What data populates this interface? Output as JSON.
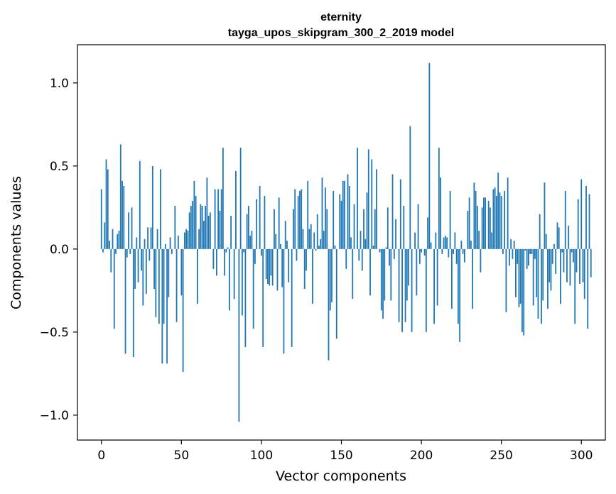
{
  "chart_data": {
    "type": "bar",
    "title": "eternity",
    "subtitle": "tayga_upos_skipgram_300_2_2019 model",
    "xlabel": "Vector components",
    "ylabel": "Components values",
    "xlim": [
      -15,
      315
    ],
    "ylim": [
      -1.15,
      1.23
    ],
    "x_ticks": [
      0,
      50,
      100,
      150,
      200,
      250,
      300
    ],
    "x_tick_labels": [
      "0",
      "50",
      "100",
      "150",
      "200",
      "250",
      "300"
    ],
    "y_ticks": [
      1.0,
      0.5,
      0.0,
      -0.5,
      -1.0
    ],
    "y_tick_labels": [
      "1.0",
      "0.5",
      "0.0",
      "−0.5",
      "−1.0"
    ],
    "bar_color": "#1f77b4",
    "grid": false,
    "legend": "none",
    "series": [
      {
        "values": [
          0.36,
          -0.02,
          0.16,
          0.54,
          0.48,
          0.05,
          -0.14,
          0.12,
          -0.48,
          -0.03,
          0.09,
          0.11,
          0.63,
          0.41,
          0.38,
          -0.63,
          -0.05,
          0.22,
          -0.03,
          0.25,
          -0.65,
          -0.24,
          0.07,
          -0.2,
          0.53,
          -0.13,
          -0.34,
          0.06,
          -0.27,
          0.13,
          -0.07,
          0.13,
          0.5,
          -0.24,
          -0.41,
          0.12,
          -0.45,
          0.48,
          -0.69,
          -0.45,
          0.03,
          -0.69,
          -0.29,
          0.07,
          -0.03,
          0.0,
          0.26,
          -0.44,
          0.08,
          0.0,
          -0.28,
          -0.74,
          0.1,
          0.12,
          0.11,
          0.22,
          0.26,
          0.29,
          0.41,
          0.32,
          -0.33,
          0.12,
          0.27,
          0.26,
          0.17,
          0.26,
          0.43,
          0.2,
          0.22,
          0.0,
          -0.12,
          0.36,
          -0.16,
          0.36,
          0.23,
          0.36,
          0.61,
          -0.16,
          -0.02,
          0.01,
          -0.37,
          0.2,
          0.0,
          -0.3,
          0.47,
          0.0,
          -1.04,
          0.61,
          -0.4,
          -0.02,
          -0.59,
          0.21,
          0.26,
          0.08,
          0.11,
          -0.48,
          -0.09,
          0.3,
          0.0,
          0.38,
          -0.04,
          -0.59,
          0.32,
          -0.18,
          -0.21,
          -0.22,
          -0.16,
          -0.22,
          0.24,
          0.09,
          -0.25,
          0.31,
          0.03,
          -0.23,
          -0.63,
          0.17,
          0.05,
          -0.2,
          0.0,
          -0.59,
          0.24,
          0.36,
          -0.07,
          0.32,
          0.35,
          0.36,
          0.12,
          -0.24,
          -0.13,
          0.41,
          0.12,
          0.15,
          -0.33,
          0.1,
          -0.01,
          0.21,
          0.02,
          0.06,
          0.43,
          0.11,
          0.37,
          0.24,
          -0.67,
          -0.37,
          -0.32,
          0.35,
          0.02,
          -0.54,
          0.0,
          0.33,
          0.29,
          0.41,
          0.41,
          -0.12,
          0.45,
          0.38,
          0.07,
          -0.3,
          0.27,
          0.0,
          0.61,
          -0.07,
          0.11,
          -0.13,
          0.24,
          0.06,
          0.34,
          0.6,
          -0.28,
          0.54,
          0.02,
          0.24,
          0.48,
          0.0,
          -0.02,
          -0.37,
          -0.42,
          -0.31,
          0.01,
          0.25,
          -0.1,
          -0.31,
          0.45,
          -0.06,
          0.18,
          0.0,
          -0.44,
          0.42,
          -0.5,
          0.26,
          -0.44,
          -0.31,
          -0.22,
          0.74,
          -0.5,
          0.0,
          0.1,
          -0.28,
          0.27,
          -0.09,
          -0.02,
          0.0,
          -0.04,
          -0.5,
          0.19,
          1.12,
          0.04,
          0.0,
          -0.45,
          0.1,
          -0.34,
          0.61,
          0.43,
          -0.03,
          0.07,
          0.08,
          0.07,
          -0.05,
          0.35,
          -0.36,
          -0.03,
          0.1,
          -0.09,
          -0.45,
          -0.56,
          0.05,
          -0.03,
          -0.08,
          0.0,
          0.23,
          0.31,
          0.05,
          -0.36,
          0.4,
          0.35,
          0.26,
          0.11,
          -0.14,
          0.25,
          0.31,
          0.31,
          0.0,
          0.29,
          0.25,
          0.1,
          0.36,
          0.37,
          0.32,
          0.46,
          0.34,
          0.32,
          -0.03,
          0.35,
          -0.38,
          0.43,
          -0.1,
          0.06,
          -0.06,
          0.05,
          -0.29,
          -0.09,
          -0.35,
          -0.33,
          -0.5,
          -0.52,
          -0.01,
          -0.12,
          -0.1,
          -0.03,
          -0.03,
          -0.34,
          -0.06,
          -0.29,
          -0.42,
          0.21,
          -0.45,
          -0.31,
          0.4,
          0.09,
          -0.36,
          -0.2,
          -0.25,
          -0.09,
          0.03,
          -0.15,
          0.16,
          0.13,
          -0.33,
          -0.02,
          -0.14,
          0.35,
          -0.2,
          0.14,
          -0.22,
          -0.02,
          -0.08,
          -0.45,
          -0.14,
          0.3,
          -0.21,
          0.42,
          -0.2,
          -0.3,
          0.38,
          -0.48,
          0.33,
          -0.17
        ]
      }
    ]
  }
}
